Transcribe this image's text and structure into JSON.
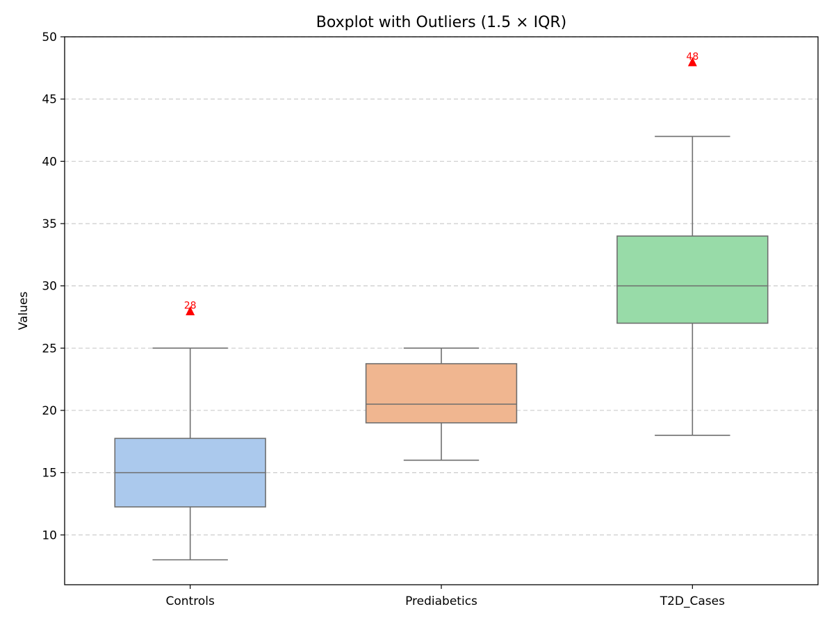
{
  "chart_data": {
    "type": "box",
    "title": "Boxplot with Outliers (1.5 × IQR)",
    "xlabel": "",
    "ylabel": "Values",
    "ylim": [
      6,
      50
    ],
    "yticks": [
      10,
      15,
      20,
      25,
      30,
      35,
      40,
      45,
      50
    ],
    "grid": "horizontal dashed",
    "categories": [
      "Controls",
      "Prediabetics",
      "T2D_Cases"
    ],
    "boxes": [
      {
        "category": "Controls",
        "whisker_low": 8,
        "q1": 12.25,
        "median": 15,
        "q3": 17.75,
        "whisker_high": 25,
        "outliers": [
          28
        ],
        "color": "#abc9ed"
      },
      {
        "category": "Prediabetics",
        "whisker_low": 16,
        "q1": 19,
        "median": 20.5,
        "q3": 23.75,
        "whisker_high": 25,
        "outliers": [],
        "color": "#f0b690"
      },
      {
        "category": "T2D_Cases",
        "whisker_low": 18,
        "q1": 27,
        "median": 30,
        "q3": 34,
        "whisker_high": 42,
        "outliers": [
          48
        ],
        "color": "#98dba8"
      }
    ],
    "line_color": "#6e6e6e",
    "outlier_color": "#ff0000"
  }
}
